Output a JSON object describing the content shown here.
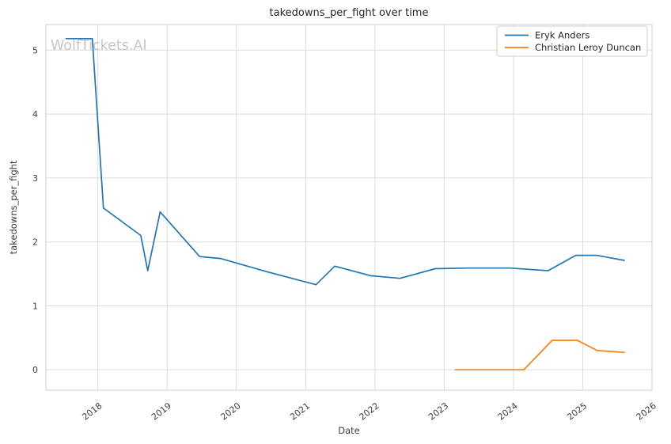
{
  "watermark": "WolfTickets.AI",
  "colors": {
    "series_blue": "#1f77b4",
    "series_orange": "#ff7f0e",
    "grid": "#dcdcdc",
    "spine": "#cfcfcf",
    "text": "#3d3d3d",
    "watermark": "#c6c6c6",
    "background": "#ffffff",
    "legend_border": "#cccccc"
  },
  "chart_data": {
    "type": "line",
    "title": "takedowns_per_fight over time",
    "xlabel": "Date",
    "ylabel": "takedowns_per_fight",
    "grid": true,
    "legend_position": "upper right",
    "xlim": [
      2017.25,
      2026.0
    ],
    "ylim": [
      -0.32,
      5.4
    ],
    "x_ticks": [
      2018,
      2019,
      2020,
      2021,
      2022,
      2023,
      2024,
      2025,
      2026
    ],
    "y_ticks": [
      0,
      1,
      2,
      3,
      4,
      5
    ],
    "series": [
      {
        "name": "Eryk Anders",
        "color": "#1f77b4",
        "points": [
          [
            2017.54,
            5.18
          ],
          [
            2017.92,
            5.18
          ],
          [
            2018.08,
            2.53
          ],
          [
            2018.62,
            2.1
          ],
          [
            2018.72,
            1.55
          ],
          [
            2018.9,
            2.47
          ],
          [
            2019.47,
            1.77
          ],
          [
            2019.77,
            1.74
          ],
          [
            2020.45,
            1.53
          ],
          [
            2021.15,
            1.33
          ],
          [
            2021.42,
            1.62
          ],
          [
            2021.94,
            1.47
          ],
          [
            2022.36,
            1.43
          ],
          [
            2022.87,
            1.58
          ],
          [
            2023.35,
            1.59
          ],
          [
            2023.95,
            1.59
          ],
          [
            2024.5,
            1.55
          ],
          [
            2024.9,
            1.79
          ],
          [
            2025.2,
            1.79
          ],
          [
            2025.6,
            1.71
          ]
        ]
      },
      {
        "name": "Christian Leroy Duncan",
        "color": "#ff7f0e",
        "points": [
          [
            2023.16,
            0.0
          ],
          [
            2023.6,
            0.0
          ],
          [
            2024.15,
            0.0
          ],
          [
            2024.56,
            0.46
          ],
          [
            2024.92,
            0.46
          ],
          [
            2025.21,
            0.3
          ],
          [
            2025.6,
            0.27
          ]
        ]
      }
    ]
  }
}
